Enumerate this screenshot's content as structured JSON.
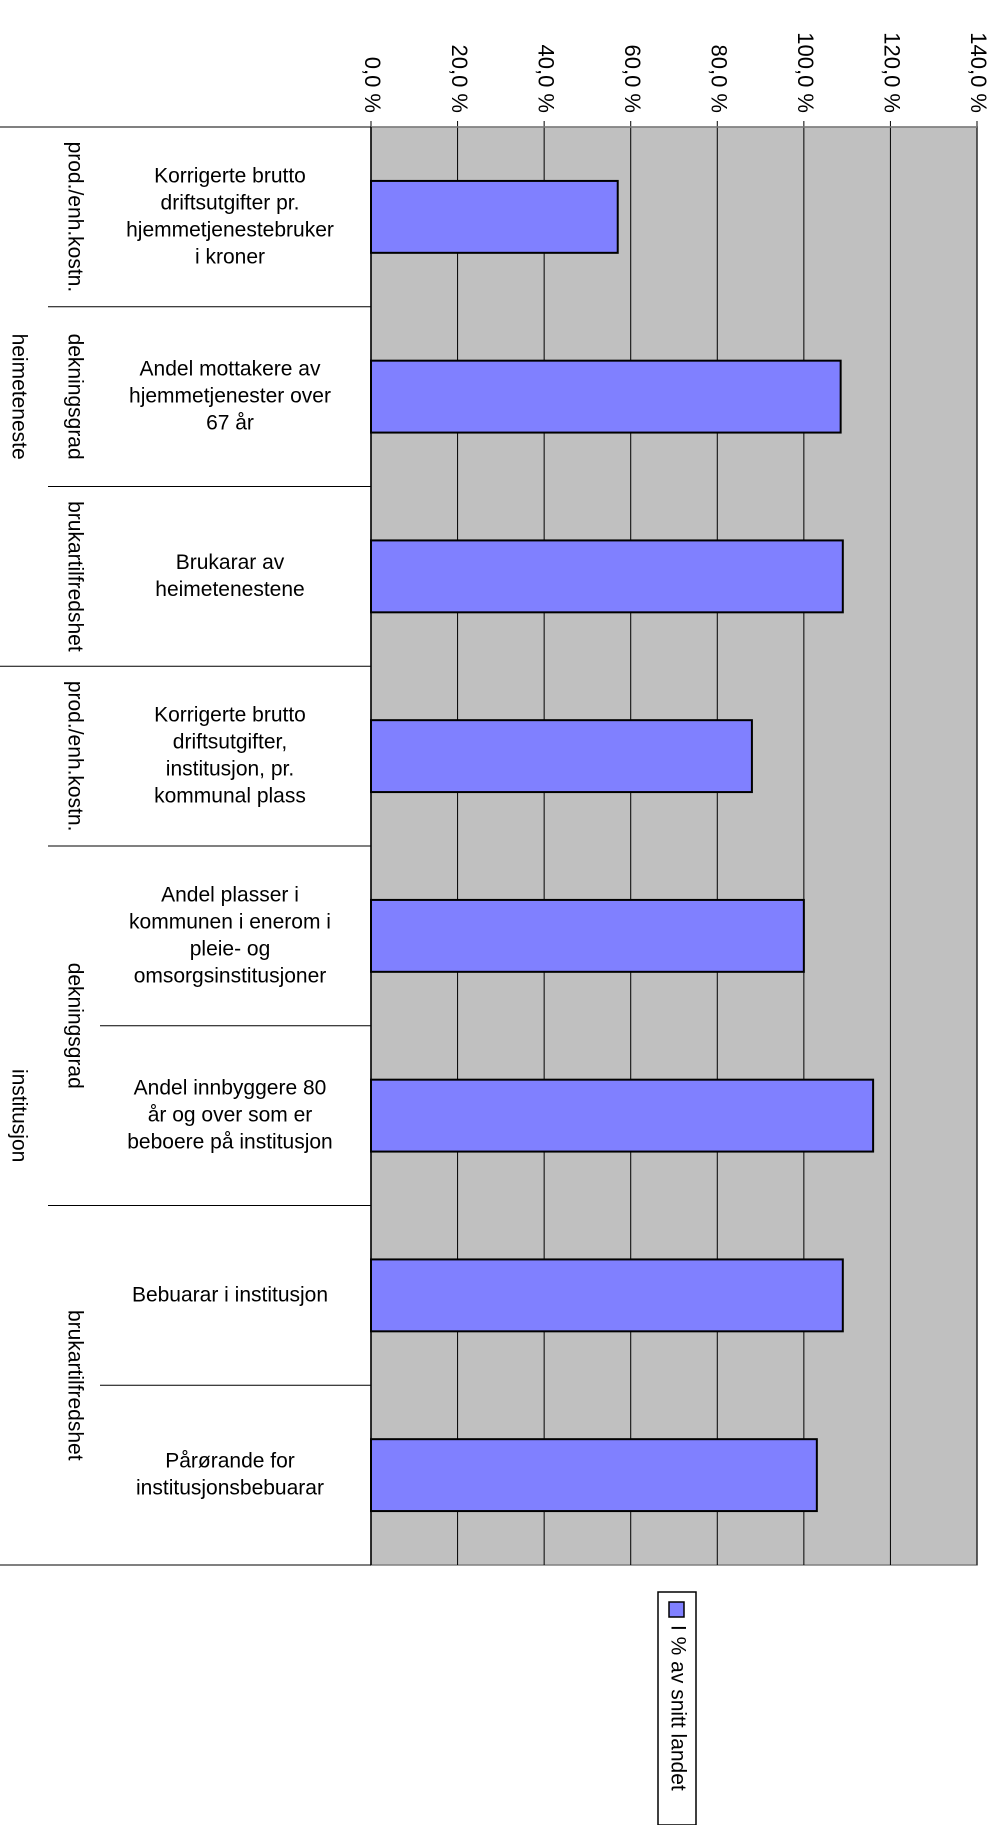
{
  "chart_data": {
    "type": "bar",
    "orientation": "horizontal",
    "title": "",
    "xlabel": "",
    "ylabel": "",
    "xlim": [
      0,
      140
    ],
    "x_ticks": [
      "0,0 %",
      "20,0 %",
      "40,0 %",
      "60,0 %",
      "80,0 %",
      "100,0 %",
      "120,0 %",
      "140,0 %"
    ],
    "grid": true,
    "legend_position": "bottom",
    "plot_background": "#c0c0c0",
    "bar_color": "#8080ff",
    "groups": [
      {
        "label": "heimeteneste",
        "subgroups": [
          {
            "label": "prod./enh.kostn.",
            "categories": [
              "Korrigerte brutto driftsutgifter pr. hjemmetjenestebruker i kroner"
            ]
          },
          {
            "label": "dekningsgrad",
            "categories": [
              "Andel mottakere av hjemmetjenester over 67 år"
            ]
          },
          {
            "label": "brukartilfredshet",
            "categories": [
              "Brukarar av heimetenestene"
            ]
          }
        ]
      },
      {
        "label": "institusjon",
        "subgroups": [
          {
            "label": "prod./enh.kostn.",
            "categories": [
              "Korrigerte brutto driftsutgifter, institusjon, pr. kommunal plass"
            ]
          },
          {
            "label": "dekningsgrad",
            "categories": [
              "Andel plasser i kommunen i enerom i pleie- og omsorgsinstitusjoner",
              "Andel innbyggere 80 år og over som er beboere på institusjon"
            ]
          },
          {
            "label": "brukartilfredshet",
            "categories": [
              "Bebuarar i institusjon",
              "Pårørande for institusjonsbebuarar"
            ]
          }
        ]
      }
    ],
    "categories": [
      "Korrigerte brutto driftsutgifter pr. hjemmetjenestebruker i kroner",
      "Andel mottakere av hjemmetjenester over 67 år",
      "Brukarar av heimetenestene",
      "Korrigerte brutto driftsutgifter, institusjon, pr. kommunal plass",
      "Andel plasser i kommunen i enerom i pleie- og omsorgsinstitusjoner",
      "Andel innbyggere 80 år og over som er beboere på institusjon",
      "Bebuarar i institusjon",
      "Pårørande for institusjonsbebuarar"
    ],
    "category_lines": [
      [
        "Korrigerte brutto",
        "driftsutgifter pr.",
        "hjemmetjenestebruker",
        "i kroner"
      ],
      [
        "Andel mottakere av",
        "hjemmetjenester over",
        "67 år"
      ],
      [
        "Brukarar av",
        "heimetenestene"
      ],
      [
        "Korrigerte brutto",
        "driftsutgifter,",
        "institusjon, pr.",
        "kommunal plass"
      ],
      [
        "Andel plasser i",
        "kommunen i enerom i",
        "pleie- og",
        "omsorgsinstitusjoner"
      ],
      [
        "Andel innbyggere 80",
        "år og over som er",
        "beboere på institusjon"
      ],
      [
        "Bebuarar i institusjon"
      ],
      [
        "Pårørande for",
        "institusjonsbebuarar"
      ]
    ],
    "series": [
      {
        "name": "I % av snitt landet",
        "values": [
          57.0,
          108.5,
          109.0,
          88.0,
          100.0,
          116.0,
          109.0,
          103.0
        ]
      }
    ]
  }
}
